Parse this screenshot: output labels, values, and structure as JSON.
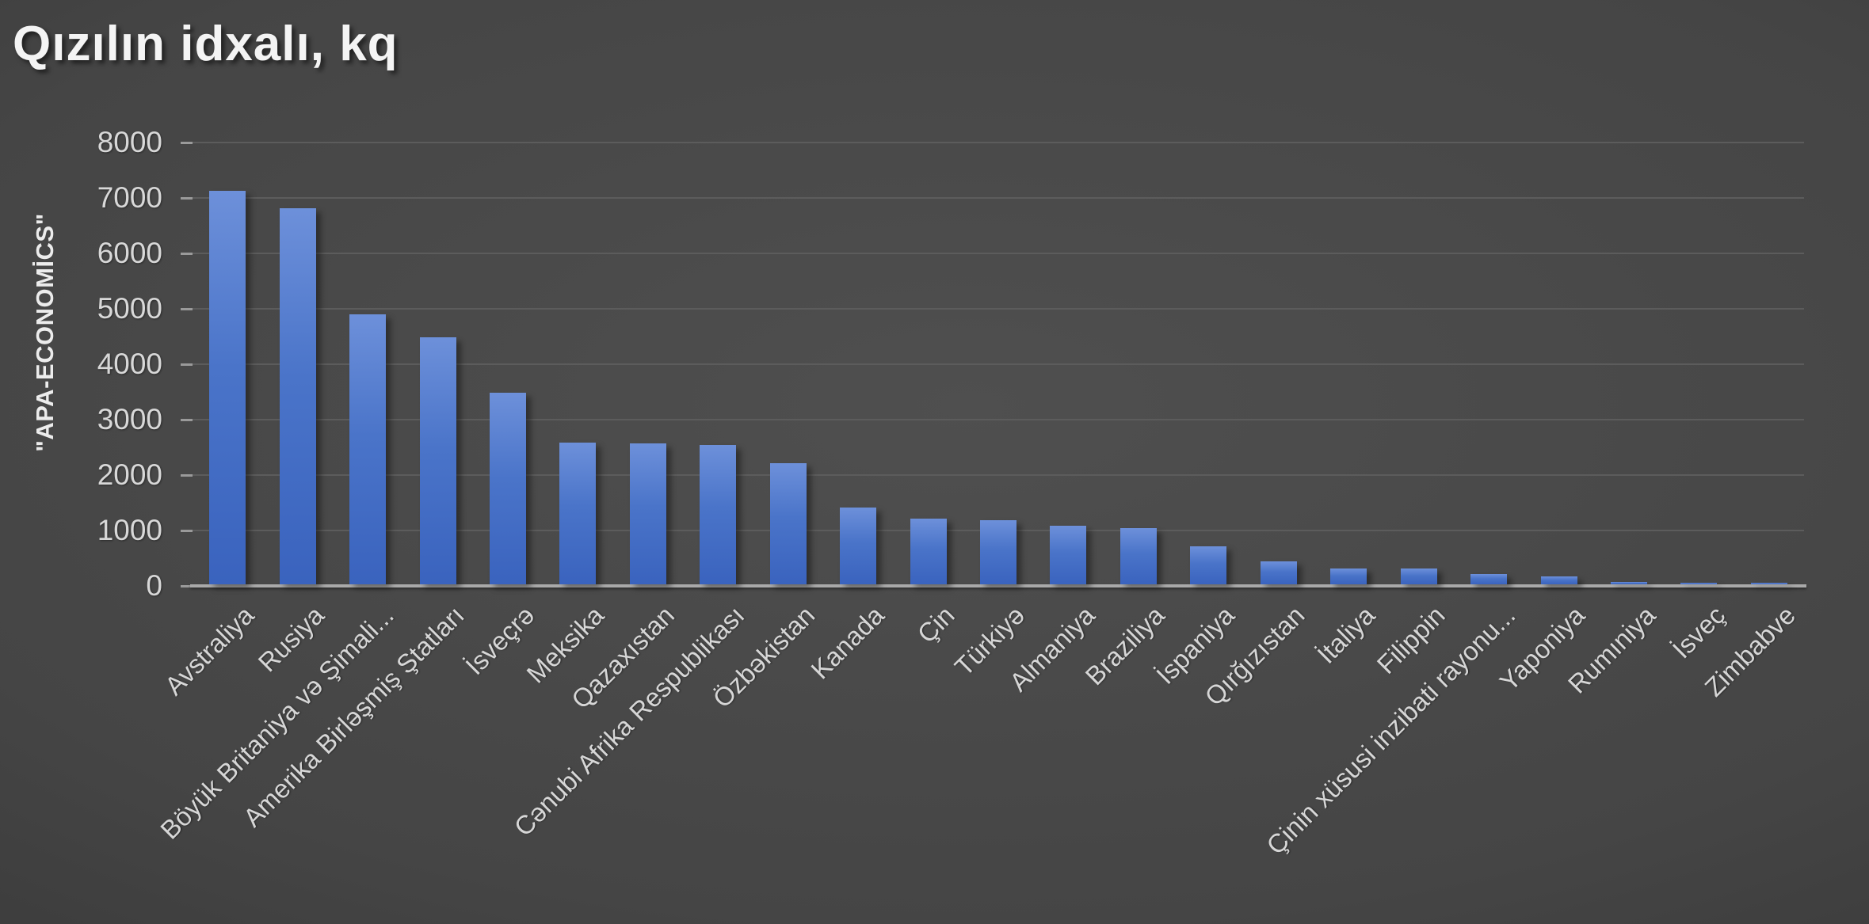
{
  "chart_data": {
    "type": "bar",
    "title": "Qızılın idxalı, kq",
    "ylabel": "\"APA-ECONOMİCS\"",
    "xlabel": "",
    "ylim": [
      0,
      8000
    ],
    "ytick_interval": 1000,
    "yticks": [
      0,
      1000,
      2000,
      3000,
      4000,
      5000,
      6000,
      7000,
      8000
    ],
    "grid": true,
    "legend": false,
    "categories": [
      "Avstraliya",
      "Rusiya",
      "Böyük Britaniya və Şimali...",
      "Amerika Birləşmiş Ştatları",
      "İsveçrə",
      "Meksika",
      "Qazaxıstan",
      "Cənubi Afrika Respublikası",
      "Özbəkistan",
      "Kanada",
      "Çin",
      "Türkiyə",
      "Almaniya",
      "Braziliya",
      "İspaniya",
      "Qırğızıstan",
      "İtaliya",
      "Filippin",
      "Çinin xüsusi inzibati rayonu...",
      "Yaponiya",
      "Rumıniya",
      "İsveç",
      "Zimbabve"
    ],
    "values": [
      7100,
      6780,
      4870,
      4460,
      3460,
      2560,
      2540,
      2510,
      2190,
      1390,
      1180,
      1160,
      1060,
      1010,
      680,
      420,
      290,
      280,
      180,
      140,
      40,
      25,
      15
    ],
    "colors": {
      "bar_top": "#6d90da",
      "bar_mid": "#4a74c9",
      "bar_bottom": "#3a63be",
      "gridline": "#5c5c5c",
      "axis_baseline": "#a9a9a9",
      "tick": "#9a9a9a",
      "tick_label": "#d8d8d8",
      "category_label": "#d6d6d6",
      "title": "#f4f4f4"
    }
  }
}
